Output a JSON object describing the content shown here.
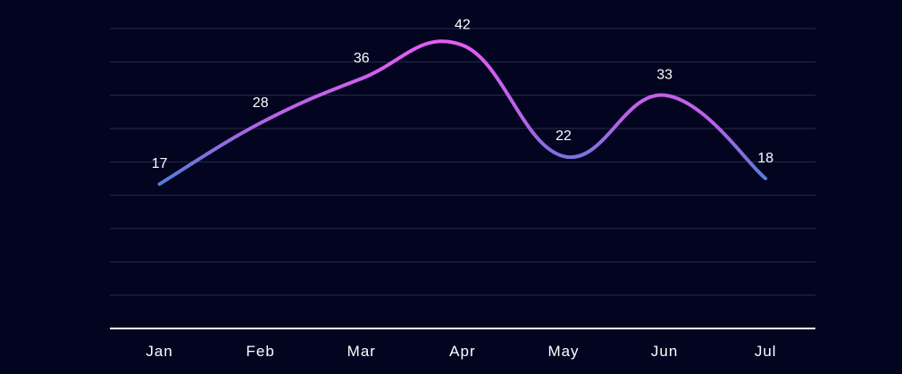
{
  "chart_data": {
    "type": "line",
    "categories": [
      "Jan",
      "Feb",
      "Mar",
      "Apr",
      "May",
      "Jun",
      "Jul"
    ],
    "values": [
      17,
      28,
      36,
      42,
      22,
      33,
      18
    ],
    "ylim": [
      -9,
      45
    ],
    "grid": true,
    "smooth": true,
    "data_labels": true,
    "colors": {
      "background": "#020420",
      "line_low": "#4f7fd6",
      "line_high": "#e35df2",
      "grid": "#2a2d4a",
      "text": "#ffffff"
    }
  }
}
